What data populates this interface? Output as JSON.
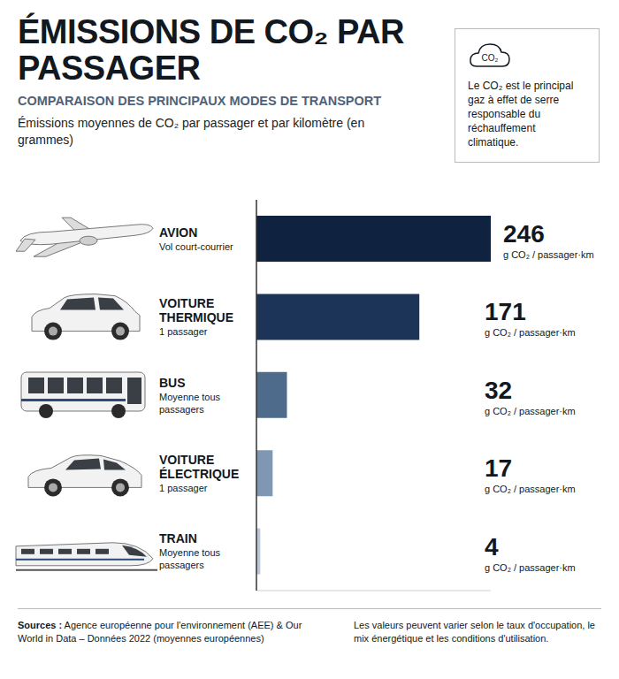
{
  "chart_data": {
    "type": "bar",
    "orientation": "horizontal",
    "title": "ÉMISSIONS DE CO₂ PAR PASSAGER",
    "subtitle": "COMPARAISON DES PRINCIPAUX MODES DE TRANSPORT",
    "axis_label": "Émissions moyennes de CO₂ par passager et par kilomètre (en grammes)",
    "categories": [
      "AVION",
      "VOITURE THERMIQUE",
      "BUS",
      "VOITURE ÉLECTRIQUE",
      "TRAIN"
    ],
    "category_notes": [
      "Vol court-courrier",
      "1 passager",
      "Moyenne tous passagers",
      "1 passager",
      "Moyenne tous passagers"
    ],
    "values": [
      246,
      171,
      32,
      17,
      4
    ],
    "unit": "g CO₂ / passager·km",
    "colors": [
      "#0f2340",
      "#1c3458",
      "#4f6b8c",
      "#7e97b3",
      "#b9c8d8"
    ],
    "xlim": [
      0,
      246
    ],
    "xticks": [
      0
    ],
    "grid": false,
    "tick_labels": false,
    "data_labels": true,
    "info_box": {
      "icon": "CO₂",
      "text": "Le CO₂ est le principal gaz à effet de serre responsable du réchauffement climatique."
    },
    "sources_label": "Sources :",
    "sources": "Agence européenne pour l'environnement (AEE) & Our World in Data – Données 2022 (moyennes européennes)",
    "note": "Les valeurs peuvent varier selon le taux d'occupation, le mix énergétique et les conditions d'utilisation."
  }
}
